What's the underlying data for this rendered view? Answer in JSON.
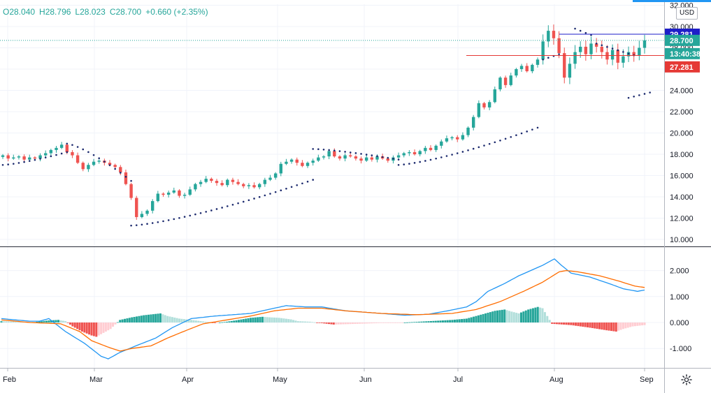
{
  "ohlc_line": {
    "open": "O28.040",
    "high": "H28.796",
    "low": "L28.023",
    "close": "C28.700",
    "change": "+0.660 (+2.35%)"
  },
  "currency": "USD",
  "price_tags": [
    {
      "label": "29.281",
      "value": 29.281,
      "color": "#1e1ec8"
    },
    {
      "label": "28.700",
      "value": 28.7,
      "color": "#26a69a"
    },
    {
      "label": "13:40:38",
      "value": 27.55,
      "color": "#26a69a"
    },
    {
      "label": "27.281",
      "value": 27.281,
      "color": "#e53935"
    }
  ],
  "colors": {
    "up": "#26a69a",
    "down": "#ef5350",
    "sar": "#1c2a6e",
    "macd": "#2196f3",
    "signal": "#ff6d00",
    "hist_up_strong": "#26a69a",
    "hist_up_weak": "#b2dfdb",
    "hist_down_strong": "#ef5350",
    "hist_down_weak": "#ffcdd2",
    "hline_blue": "#1e1ec8",
    "hline_red": "#e53935"
  },
  "chart_data": [
    {
      "type": "candlestick",
      "title": "",
      "x_labels": [
        "Feb",
        "Mar",
        "Apr",
        "May",
        "Jun",
        "Jul",
        "Aug",
        "Sep"
      ],
      "y_ticks": [
        10,
        12,
        14,
        16,
        18,
        20,
        22,
        24,
        26,
        28,
        30,
        32
      ],
      "y_tick_labels": [
        "10.000",
        "12.000",
        "14.000",
        "16.000",
        "18.000",
        "20.000",
        "22.000",
        "24.000",
        "26.000",
        "28.000",
        "30.000",
        "32.000"
      ],
      "ylim": [
        9.4,
        32.4
      ],
      "horizontal_lines": [
        {
          "value": 29.281,
          "color": "#1e1ec8"
        },
        {
          "value": 27.281,
          "color": "#e53935"
        }
      ],
      "close_series": [
        17.9,
        17.6,
        17.7,
        17.8,
        17.5,
        17.7,
        17.6,
        17.9,
        18.1,
        18.4,
        18.6,
        18.9,
        18.2,
        17.9,
        17.2,
        16.6,
        17.0,
        17.3,
        17.4,
        17.2,
        17.0,
        16.8,
        16.3,
        15.2,
        13.9,
        12.1,
        12.4,
        12.7,
        13.6,
        14.3,
        14.2,
        14.4,
        14.6,
        14.1,
        14.2,
        14.7,
        15.2,
        15.4,
        15.7,
        15.5,
        15.3,
        15.1,
        15.6,
        15.4,
        15.2,
        15.0,
        15.1,
        14.9,
        15.2,
        15.6,
        15.8,
        16.2,
        17.1,
        17.3,
        17.5,
        17.2,
        16.9,
        17.2,
        17.4,
        17.7,
        17.8,
        18.3,
        17.8,
        17.6,
        17.9,
        17.8,
        17.6,
        17.4,
        17.7,
        17.5,
        17.8,
        17.6,
        17.4,
        17.7,
        17.9,
        18.1,
        18.2,
        18.0,
        18.3,
        18.6,
        18.4,
        18.8,
        19.2,
        19.5,
        19.6,
        19.4,
        19.8,
        20.5,
        21.5,
        22.8,
        22.4,
        22.9,
        24.1,
        25.2,
        24.5,
        25.4,
        26.0,
        26.3,
        25.8,
        26.4,
        26.9,
        28.6,
        29.6,
        28.9,
        27.5,
        25.2,
        26.5,
        27.6,
        28.1,
        27.4,
        28.4,
        28.1,
        27.6,
        26.9,
        27.8,
        26.6,
        27.2,
        27.6,
        27.3,
        28.0,
        28.7
      ],
      "parabolic_sar": [
        {
          "from": 0,
          "to": 12,
          "start": 17.0,
          "end": 18.2,
          "side": "below"
        },
        {
          "from": 12,
          "to": 24,
          "start": 19.0,
          "end": 15.5,
          "side": "above"
        },
        {
          "from": 24,
          "to": 58,
          "start": 11.3,
          "end": 15.6,
          "side": "below"
        },
        {
          "from": 58,
          "to": 74,
          "start": 18.5,
          "end": 17.5,
          "side": "above"
        },
        {
          "from": 74,
          "to": 100,
          "start": 17.0,
          "end": 20.5,
          "side": "below"
        }
      ]
    },
    {
      "type": "line+histogram",
      "title": "",
      "y_ticks": [
        -1,
        0,
        1,
        2
      ],
      "y_tick_labels": [
        "-1.000",
        "0.000",
        "1.000",
        "2.000"
      ],
      "ylim": [
        -1.75,
        2.75
      ],
      "series": [
        {
          "name": "",
          "role": "macd",
          "anchors": [
            [
              0,
              0.15
            ],
            [
              12,
              0.05
            ],
            [
              16,
              0.05
            ],
            [
              20,
              0.15
            ],
            [
              27,
              -0.35
            ],
            [
              35,
              -0.8
            ],
            [
              42,
              -1.3
            ],
            [
              45,
              -1.4
            ],
            [
              50,
              -1.15
            ],
            [
              58,
              -0.85
            ],
            [
              65,
              -0.6
            ],
            [
              72,
              -0.2
            ],
            [
              80,
              0.15
            ],
            [
              90,
              0.25
            ],
            [
              105,
              0.35
            ],
            [
              115,
              0.55
            ],
            [
              120,
              0.65
            ],
            [
              128,
              0.6
            ],
            [
              135,
              0.6
            ],
            [
              145,
              0.45
            ],
            [
              160,
              0.35
            ],
            [
              170,
              0.28
            ],
            [
              180,
              0.32
            ],
            [
              188,
              0.45
            ],
            [
              196,
              0.6
            ],
            [
              200,
              0.8
            ],
            [
              205,
              1.2
            ],
            [
              212,
              1.5
            ],
            [
              218,
              1.8
            ],
            [
              223,
              2.0
            ],
            [
              228,
              2.2
            ],
            [
              233,
              2.45
            ],
            [
              236,
              2.2
            ],
            [
              240,
              1.9
            ],
            [
              248,
              1.75
            ],
            [
              256,
              1.5
            ],
            [
              262,
              1.3
            ],
            [
              268,
              1.2
            ],
            [
              271,
              1.25
            ]
          ]
        },
        {
          "name": "",
          "role": "signal",
          "anchors": [
            [
              0,
              0.1
            ],
            [
              12,
              0.0
            ],
            [
              25,
              -0.05
            ],
            [
              33,
              -0.35
            ],
            [
              38,
              -0.7
            ],
            [
              45,
              -0.95
            ],
            [
              50,
              -1.1
            ],
            [
              55,
              -1.0
            ],
            [
              63,
              -0.9
            ],
            [
              70,
              -0.6
            ],
            [
              78,
              -0.3
            ],
            [
              85,
              -0.05
            ],
            [
              95,
              0.1
            ],
            [
              105,
              0.25
            ],
            [
              115,
              0.45
            ],
            [
              125,
              0.55
            ],
            [
              135,
              0.55
            ],
            [
              145,
              0.45
            ],
            [
              160,
              0.35
            ],
            [
              175,
              0.3
            ],
            [
              190,
              0.35
            ],
            [
              200,
              0.5
            ],
            [
              210,
              0.8
            ],
            [
              220,
              1.2
            ],
            [
              228,
              1.55
            ],
            [
              235,
              1.95
            ],
            [
              238,
              2.0
            ],
            [
              243,
              1.95
            ],
            [
              252,
              1.8
            ],
            [
              260,
              1.6
            ],
            [
              267,
              1.4
            ],
            [
              271,
              1.35
            ]
          ]
        }
      ],
      "histogram_anchors": [
        [
          0,
          0.05
        ],
        [
          8,
          0.03
        ],
        [
          14,
          0.02
        ],
        [
          20,
          0.08
        ],
        [
          24,
          0.1
        ],
        [
          27,
          0.05
        ],
        [
          30,
          -0.15
        ],
        [
          34,
          -0.35
        ],
        [
          38,
          -0.5
        ],
        [
          40,
          -0.55
        ],
        [
          43,
          -0.4
        ],
        [
          46,
          -0.25
        ],
        [
          50,
          0.1
        ],
        [
          55,
          0.2
        ],
        [
          60,
          0.28
        ],
        [
          64,
          0.32
        ],
        [
          67,
          0.35
        ],
        [
          70,
          0.25
        ],
        [
          75,
          0.15
        ],
        [
          80,
          0.1
        ],
        [
          90,
          -0.02
        ],
        [
          95,
          0.03
        ],
        [
          100,
          0.1
        ],
        [
          105,
          0.18
        ],
        [
          110,
          0.22
        ],
        [
          113,
          0.2
        ],
        [
          117,
          0.18
        ],
        [
          122,
          0.12
        ],
        [
          125,
          0.05
        ],
        [
          130,
          0.03
        ],
        [
          140,
          -0.08
        ],
        [
          150,
          -0.05
        ],
        [
          160,
          -0.02
        ],
        [
          170,
          0.0
        ],
        [
          180,
          0.05
        ],
        [
          190,
          0.1
        ],
        [
          196,
          0.15
        ],
        [
          200,
          0.25
        ],
        [
          204,
          0.35
        ],
        [
          208,
          0.45
        ],
        [
          212,
          0.5
        ],
        [
          215,
          0.42
        ],
        [
          218,
          0.35
        ],
        [
          222,
          0.5
        ],
        [
          226,
          0.6
        ],
        [
          228,
          0.55
        ],
        [
          232,
          -0.05
        ],
        [
          240,
          -0.1
        ],
        [
          248,
          -0.2
        ],
        [
          255,
          -0.3
        ],
        [
          259,
          -0.35
        ],
        [
          262,
          -0.25
        ],
        [
          266,
          -0.15
        ],
        [
          271,
          -0.1
        ]
      ]
    }
  ],
  "x_axis_labels": [
    "Feb",
    "Mar",
    "Apr",
    "May",
    "Jun",
    "Jul",
    "Aug",
    "Sep"
  ],
  "icons": {
    "settings": "gear-icon"
  }
}
